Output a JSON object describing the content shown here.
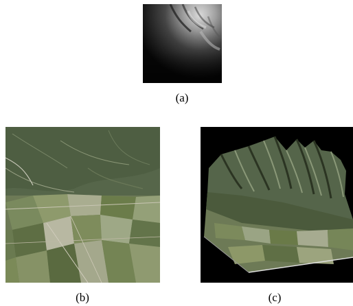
{
  "figure": {
    "panels": [
      {
        "id": "a",
        "caption": "(a)",
        "content": "grayscale-elevation-map"
      },
      {
        "id": "b",
        "caption": "(b)",
        "content": "aerial-orthophoto"
      },
      {
        "id": "c",
        "caption": "(c)",
        "content": "3d-textured-terrain"
      }
    ]
  }
}
